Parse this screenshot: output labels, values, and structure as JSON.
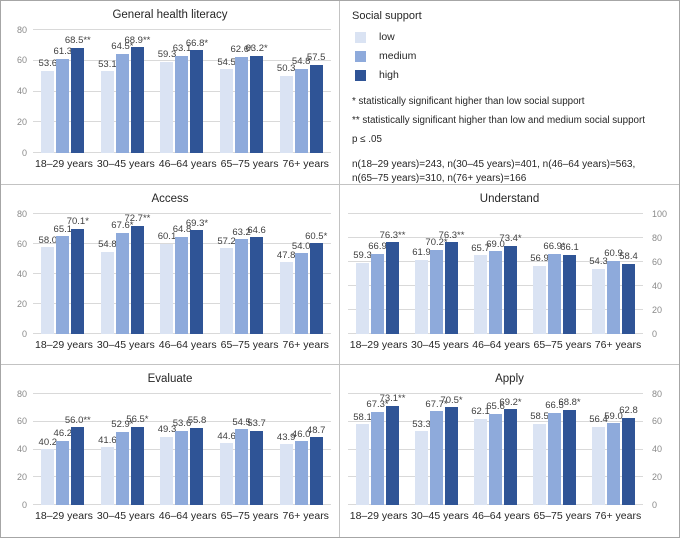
{
  "figure": {
    "legend": {
      "title": "Social support",
      "items": [
        {
          "label": "low",
          "color": "#dae3f3"
        },
        {
          "label": "medium",
          "color": "#8eaadb"
        },
        {
          "label": "high",
          "color": "#2f5496"
        }
      ],
      "note_star": "* statistically significant higher than low social support",
      "note_double_star": "** statistically significant higher than low and medium social support",
      "note_p": "p ≤ .05",
      "note_n_line1": "n(18–29 years)=243, n(30–45 years)=401, n(46–64 years)=563,",
      "note_n_line2": "n(65–75 years)=310, n(76+ years)=166"
    },
    "colors": {
      "low": "#dae3f3",
      "medium": "#8eaadb",
      "high": "#2f5496",
      "gridline": "#d9d9d9",
      "tick_label": "#8a8a8a",
      "data_label": "#404040"
    }
  },
  "chart_data": [
    {
      "type": "bar",
      "title": "General health literacy",
      "categories": [
        "18–29 years",
        "30–45 years",
        "46–64 years",
        "65–75 years",
        "76+ years"
      ],
      "axis": {
        "side": "left",
        "min": 0,
        "max": 80,
        "ticks": [
          0,
          20,
          40,
          60,
          80
        ]
      },
      "series": [
        {
          "name": "low",
          "values": [
            53.6,
            53.1,
            59.3,
            54.5,
            50.3
          ],
          "labels": [
            "53.6",
            "53.1",
            "59.3",
            "54.5",
            "50.3"
          ]
        },
        {
          "name": "medium",
          "values": [
            61.3,
            64.5,
            63.1,
            62.6,
            54.8
          ],
          "labels": [
            "61.3",
            "64.5*",
            "63.1",
            "62.6*",
            "54.8"
          ]
        },
        {
          "name": "high",
          "values": [
            68.5,
            68.9,
            66.8,
            63.2,
            57.5
          ],
          "labels": [
            "68.5**",
            "68.9**",
            "66.8*",
            "63.2*",
            "57.5"
          ]
        }
      ]
    },
    {
      "type": "bar",
      "title": "Access",
      "categories": [
        "18–29 years",
        "30–45 years",
        "46–64 years",
        "65–75 years",
        "76+ years"
      ],
      "axis": {
        "side": "left",
        "min": 0,
        "max": 80,
        "ticks": [
          0,
          20,
          40,
          60,
          80
        ]
      },
      "series": [
        {
          "name": "low",
          "values": [
            58.0,
            54.8,
            60.1,
            57.2,
            47.8
          ],
          "labels": [
            "58.0",
            "54.8",
            "60.1",
            "57.2",
            "47.8"
          ]
        },
        {
          "name": "medium",
          "values": [
            65.1,
            67.6,
            64.8,
            63.2,
            54.0
          ],
          "labels": [
            "65.1",
            "67.6*",
            "64.8",
            "63.2",
            "54.0"
          ]
        },
        {
          "name": "high",
          "values": [
            70.1,
            72.7,
            69.3,
            64.6,
            60.5
          ],
          "labels": [
            "70.1*",
            "72.7**",
            "69.3*",
            "64.6",
            "60.5*"
          ]
        }
      ]
    },
    {
      "type": "bar",
      "title": "Understand",
      "categories": [
        "18–29 years",
        "30–45 years",
        "46–64 years",
        "65–75 years",
        "76+ years"
      ],
      "axis": {
        "side": "right",
        "min": 0,
        "max": 100,
        "ticks": [
          0,
          20,
          40,
          60,
          80,
          100
        ]
      },
      "series": [
        {
          "name": "low",
          "values": [
            59.3,
            61.9,
            65.7,
            56.9,
            54.3
          ],
          "labels": [
            "59.3",
            "61.9",
            "65.7",
            "56.9",
            "54.3"
          ]
        },
        {
          "name": "medium",
          "values": [
            66.9,
            70.2,
            69.0,
            66.9,
            60.9
          ],
          "labels": [
            "66.9",
            "70.2*",
            "69.0",
            "66.9*",
            "60.9"
          ]
        },
        {
          "name": "high",
          "values": [
            76.3,
            76.3,
            73.4,
            66.1,
            58.4
          ],
          "labels": [
            "76.3**",
            "76.3**",
            "73.4*",
            "66.1",
            "58.4"
          ]
        }
      ]
    },
    {
      "type": "bar",
      "title": "Evaluate",
      "categories": [
        "18–29 years",
        "30–45 years",
        "46–64 years",
        "65–75 years",
        "76+ years"
      ],
      "axis": {
        "side": "left",
        "min": 0,
        "max": 80,
        "ticks": [
          0,
          20,
          40,
          60,
          80
        ]
      },
      "series": [
        {
          "name": "low",
          "values": [
            40.2,
            41.6,
            49.3,
            44.6,
            43.9
          ],
          "labels": [
            "40.2",
            "41.6",
            "49.3",
            "44.6",
            "43.9"
          ]
        },
        {
          "name": "medium",
          "values": [
            46.2,
            52.9,
            53.6,
            54.5,
            46.0
          ],
          "labels": [
            "46.2",
            "52.9*",
            "53.6",
            "54.5",
            "46.0"
          ]
        },
        {
          "name": "high",
          "values": [
            56.0,
            56.5,
            55.8,
            53.7,
            48.7
          ],
          "labels": [
            "56.0**",
            "56.5*",
            "55.8",
            "53.7",
            "48.7"
          ]
        }
      ]
    },
    {
      "type": "bar",
      "title": "Apply",
      "categories": [
        "18–29 years",
        "30–45 years",
        "46–64 years",
        "65–75 years",
        "76+ years"
      ],
      "axis": {
        "side": "right",
        "min": 0,
        "max": 80,
        "ticks": [
          0,
          20,
          40,
          60,
          80
        ]
      },
      "series": [
        {
          "name": "low",
          "values": [
            58.1,
            53.3,
            62.1,
            58.5,
            56.4
          ],
          "labels": [
            "58.1",
            "53.3",
            "62.1",
            "58.5",
            "56.4"
          ]
        },
        {
          "name": "medium",
          "values": [
            67.3,
            67.7,
            65.6,
            66.5,
            59.0
          ],
          "labels": [
            "67.3*",
            "67.7*",
            "65.6",
            "66.5",
            "59.0"
          ]
        },
        {
          "name": "high",
          "values": [
            73.1,
            70.5,
            69.2,
            68.8,
            62.8
          ],
          "labels": [
            "73.1**",
            "70.5*",
            "69.2*",
            "68.8*",
            "62.8"
          ]
        }
      ]
    }
  ]
}
